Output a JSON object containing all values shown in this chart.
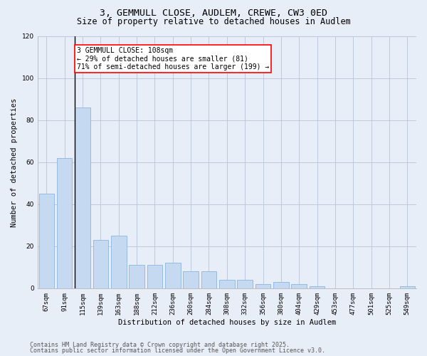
{
  "title_line1": "3, GEMMULL CLOSE, AUDLEM, CREWE, CW3 0ED",
  "title_line2": "Size of property relative to detached houses in Audlem",
  "xlabel": "Distribution of detached houses by size in Audlem",
  "ylabel": "Number of detached properties",
  "categories": [
    "67sqm",
    "91sqm",
    "115sqm",
    "139sqm",
    "163sqm",
    "188sqm",
    "212sqm",
    "236sqm",
    "260sqm",
    "284sqm",
    "308sqm",
    "332sqm",
    "356sqm",
    "380sqm",
    "404sqm",
    "429sqm",
    "453sqm",
    "477sqm",
    "501sqm",
    "525sqm",
    "549sqm"
  ],
  "values": [
    45,
    62,
    86,
    23,
    25,
    11,
    11,
    12,
    8,
    8,
    4,
    4,
    2,
    3,
    2,
    1,
    0,
    0,
    0,
    0,
    1
  ],
  "bar_color": "#c5d9f1",
  "bar_edge_color": "#8db4e2",
  "vline_x_index": 1.575,
  "annotation_text": "3 GEMMULL CLOSE: 108sqm\n← 29% of detached houses are smaller (81)\n71% of semi-detached houses are larger (199) →",
  "annotation_box_color": "white",
  "annotation_box_edge_color": "red",
  "vline_color": "black",
  "ylim": [
    0,
    120
  ],
  "yticks": [
    0,
    20,
    40,
    60,
    80,
    100,
    120
  ],
  "grid_color": "#b8c4d8",
  "background_color": "#e8eef7",
  "footer_line1": "Contains HM Land Registry data © Crown copyright and database right 2025.",
  "footer_line2": "Contains public sector information licensed under the Open Government Licence v3.0.",
  "title_fontsize": 9.5,
  "subtitle_fontsize": 8.5,
  "axis_label_fontsize": 7.5,
  "tick_fontsize": 6.5,
  "annotation_fontsize": 7,
  "footer_fontsize": 6
}
